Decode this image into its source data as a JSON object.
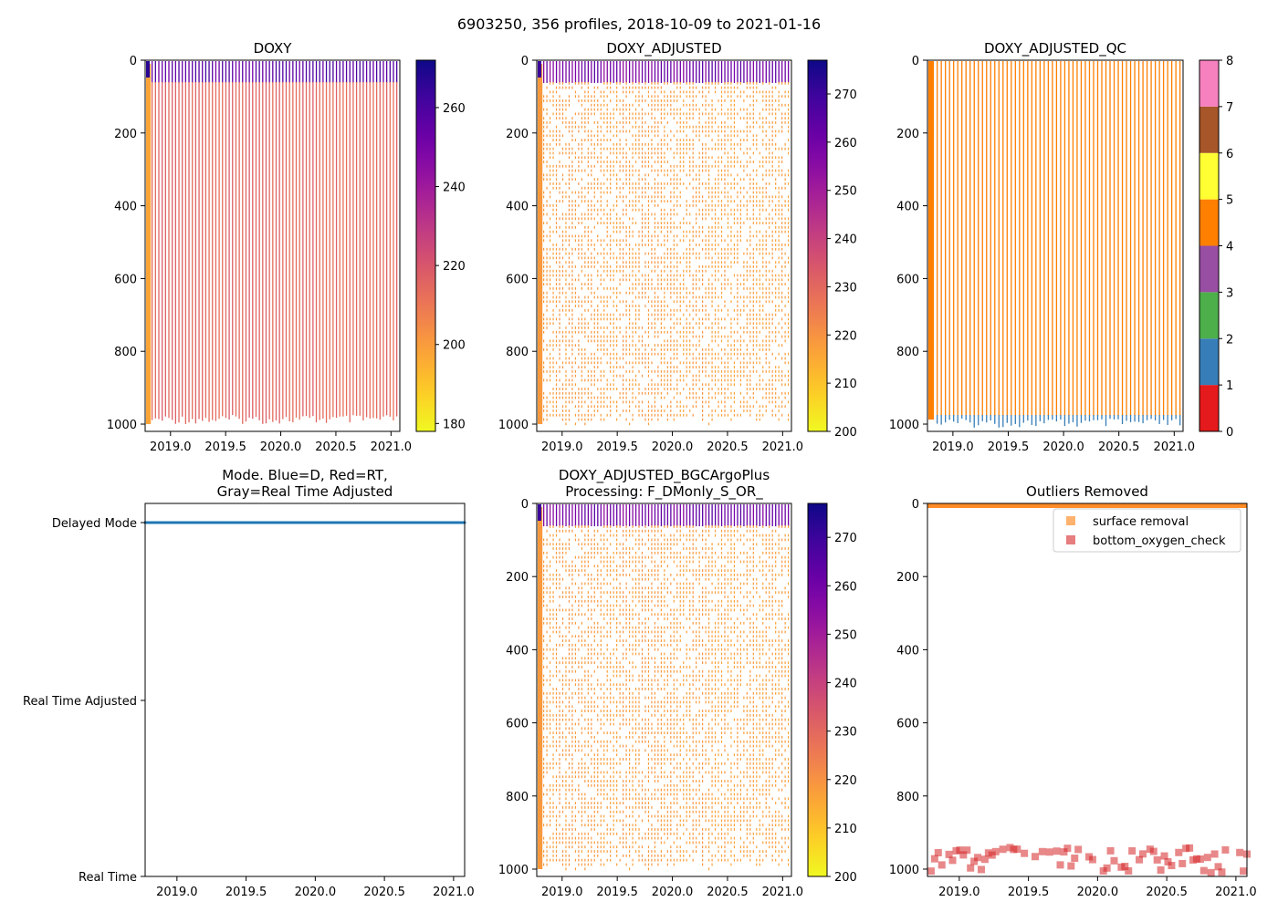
{
  "suptitle": "6903250, 356 profiles, 2018-10-09 to 2021-01-16",
  "time_ticks": [
    "2019.0",
    "2019.5",
    "2020.0",
    "2020.5",
    "2021.0"
  ],
  "depth_ticks": [
    "0",
    "200",
    "400",
    "600",
    "800",
    "1000"
  ],
  "chart_data": [
    {
      "id": "doxy",
      "type": "heatmap",
      "title": "DOXY",
      "xlim": [
        2018.77,
        2021.08
      ],
      "ylim": [
        1020,
        0
      ],
      "xlabel": "",
      "ylabel": "",
      "colormap": "plasma_r",
      "clim": [
        178,
        272
      ],
      "colorbar_ticks": [
        "180",
        "200",
        "220",
        "240",
        "260"
      ],
      "colorbar_values": [
        180,
        200,
        220,
        240,
        260
      ],
      "summary": {
        "surface_value": 262,
        "deep_value": 212,
        "early_profiles_value": 196
      }
    },
    {
      "id": "doxy_adjusted",
      "type": "heatmap",
      "title": "DOXY_ADJUSTED",
      "xlim": [
        2018.77,
        2021.08
      ],
      "ylim": [
        1020,
        0
      ],
      "colormap": "plasma_r",
      "clim": [
        200,
        277
      ],
      "colorbar_ticks": [
        "200",
        "210",
        "220",
        "230",
        "240",
        "250",
        "260",
        "270"
      ],
      "colorbar_values": [
        200,
        210,
        220,
        230,
        240,
        250,
        260,
        270
      ],
      "summary": {
        "surface_value": 265,
        "deep_value": 216
      }
    },
    {
      "id": "doxy_adjusted_qc",
      "type": "heatmap",
      "title": "DOXY_ADJUSTED_QC",
      "xlim": [
        2018.77,
        2021.08
      ],
      "ylim": [
        1020,
        0
      ],
      "colormap": "qc_categorical",
      "clim": [
        0,
        8
      ],
      "colorbar_ticks": [
        "0",
        "1",
        "2",
        "3",
        "4",
        "5",
        "6",
        "7",
        "8"
      ],
      "colorbar_values": [
        0,
        1,
        2,
        3,
        4,
        5,
        6,
        7,
        8
      ],
      "qc_colors": [
        "#e41a1c",
        "#377eb8",
        "#4daf4a",
        "#984ea3",
        "#ff7f00",
        "#ffff33",
        "#a65628",
        "#f781bf",
        "#999999"
      ],
      "summary": {
        "dominant_flag": 4,
        "bottom_flag": 1
      }
    },
    {
      "id": "mode",
      "type": "scatter",
      "title": "Mode. Blue=D, Red=RT,\nGray=Real Time Adjusted",
      "title_lines": [
        "Mode. Blue=D, Red=RT,",
        "Gray=Real Time Adjusted"
      ],
      "xlim": [
        2018.77,
        2021.08
      ],
      "y_categories": [
        "Delayed Mode",
        "Real Time Adjusted",
        "Real Time"
      ],
      "series": [
        {
          "name": "D",
          "color": "#1f77b4",
          "y_value": "Delayed Mode",
          "x_start": 2018.77,
          "x_end": 2021.08,
          "count": 356
        }
      ]
    },
    {
      "id": "doxy_adjusted_bgc",
      "type": "heatmap",
      "title": "DOXY_ADJUSTED_BGCArgoPlus\nProcessing: F_DMonly_S_OR_",
      "title_lines": [
        "DOXY_ADJUSTED_BGCArgoPlus",
        "Processing: F_DMonly_S_OR_"
      ],
      "xlim": [
        2018.77,
        2021.08
      ],
      "ylim": [
        1020,
        0
      ],
      "colormap": "plasma_r",
      "clim": [
        200,
        277
      ],
      "colorbar_ticks": [
        "200",
        "210",
        "220",
        "230",
        "240",
        "250",
        "260",
        "270"
      ],
      "colorbar_values": [
        200,
        210,
        220,
        230,
        240,
        250,
        260,
        270
      ],
      "summary": {
        "surface_value": 265,
        "deep_value": 216
      }
    },
    {
      "id": "outliers",
      "type": "scatter",
      "title": "Outliers Removed",
      "xlim": [
        2018.77,
        2021.08
      ],
      "ylim": [
        1020,
        0
      ],
      "legend_position": "upper-right",
      "series": [
        {
          "name": "surface removal",
          "color": "#ff7f0e",
          "depth_range": [
            0,
            8
          ]
        },
        {
          "name": "bottom_oxygen_check",
          "color": "#d62728",
          "depth_range": [
            940,
            1010
          ]
        }
      ]
    }
  ]
}
